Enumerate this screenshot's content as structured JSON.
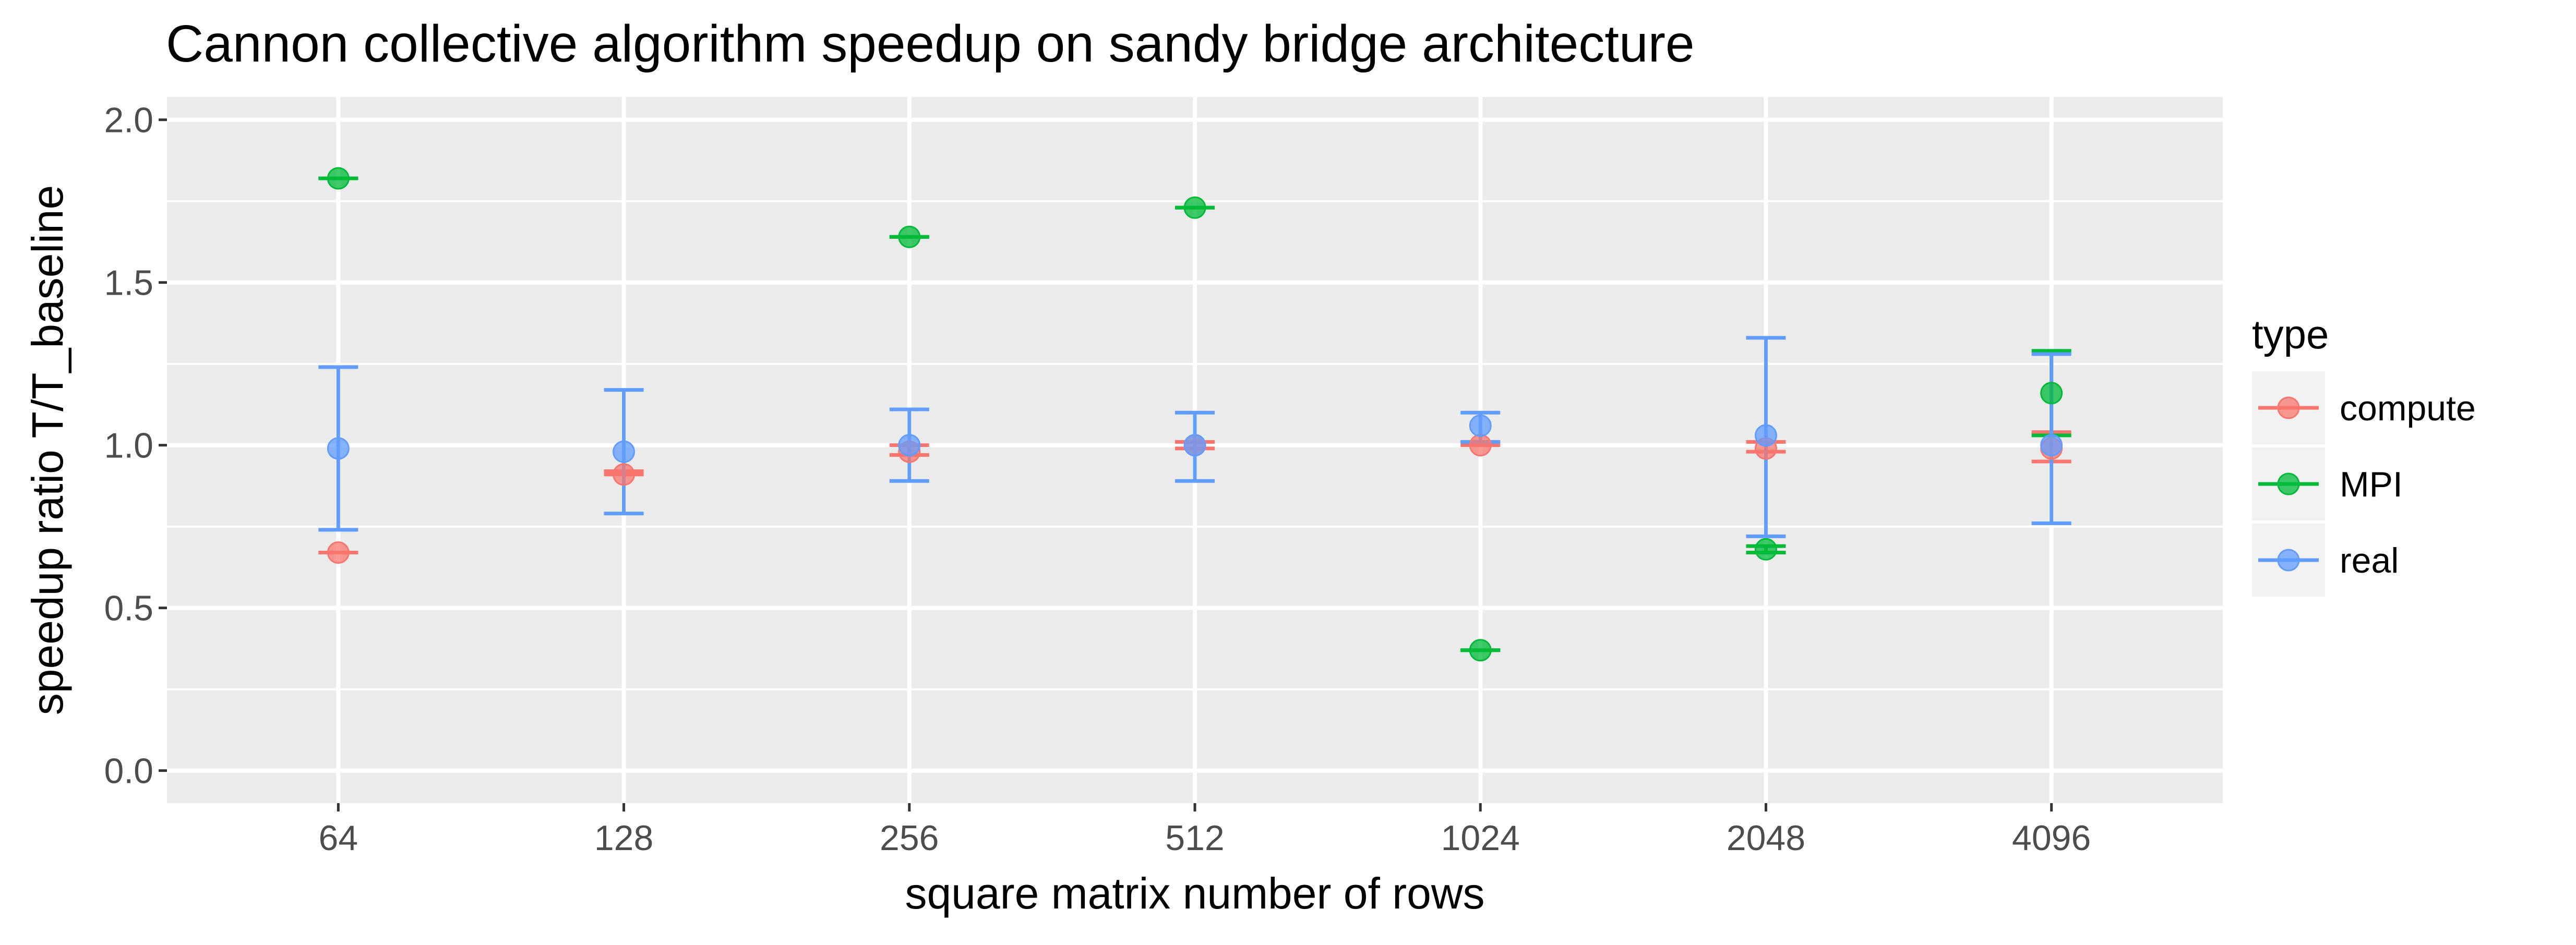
{
  "chart_data": {
    "type": "scatter",
    "title": "Cannon collective algorithm speedup on sandy bridge architecture",
    "xlabel": "square matrix number of rows",
    "ylabel": "speedup ratio T/T_baseline",
    "categories": [
      "64",
      "128",
      "256",
      "512",
      "1024",
      "2048",
      "4096"
    ],
    "ylim": [
      -0.1,
      2.07
    ],
    "yticks": [
      0.0,
      0.5,
      1.0,
      1.5,
      2.0
    ],
    "ytick_labels": [
      "0.0",
      "0.5",
      "1.0",
      "1.5",
      "2.0"
    ],
    "grid": true,
    "legend": {
      "title": "type",
      "position": "right"
    },
    "series": [
      {
        "name": "compute",
        "color": "#F8766D",
        "values": [
          0.67,
          0.91,
          0.98,
          1.0,
          1.0,
          0.99,
          0.99
        ],
        "err_low": [
          0.67,
          0.91,
          0.97,
          0.99,
          1.0,
          0.98,
          0.95
        ],
        "err_high": [
          0.67,
          0.92,
          1.0,
          1.01,
          1.01,
          1.01,
          1.04
        ]
      },
      {
        "name": "MPI",
        "color": "#00BA38",
        "values": [
          1.82,
          null,
          1.64,
          1.73,
          0.37,
          0.68,
          1.16
        ],
        "err_low": [
          1.82,
          null,
          1.64,
          1.73,
          0.37,
          0.67,
          1.03
        ],
        "err_high": [
          1.82,
          null,
          1.64,
          1.73,
          0.37,
          0.69,
          1.29
        ]
      },
      {
        "name": "real",
        "color": "#619CFF",
        "values": [
          0.99,
          0.98,
          1.0,
          1.0,
          1.06,
          1.03,
          1.0
        ],
        "err_low": [
          0.74,
          0.79,
          0.89,
          0.89,
          1.01,
          0.72,
          0.76
        ],
        "err_high": [
          1.24,
          1.17,
          1.11,
          1.1,
          1.1,
          1.33,
          1.28
        ]
      }
    ]
  }
}
